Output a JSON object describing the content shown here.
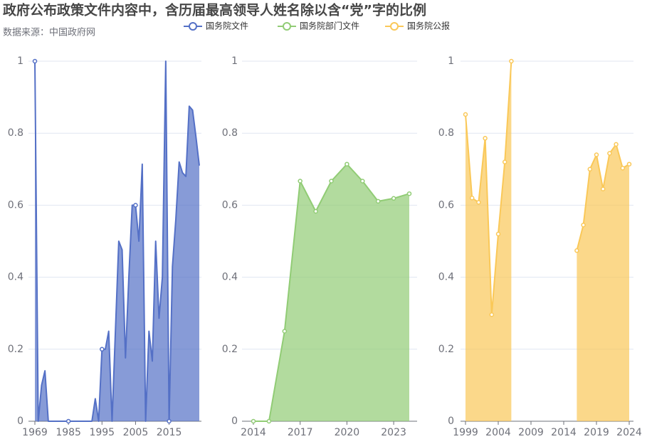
{
  "chart_data": [
    {
      "type": "area",
      "title": "政府公布政策文件内容中，含历届最高领导人姓名除以含“党”字的比例",
      "subtitle": "数据来源：中国政府网",
      "markers": "labeled",
      "categories": [
        1969,
        null,
        null,
        null,
        null,
        null,
        null,
        null,
        null,
        null,
        1985,
        null,
        null,
        null,
        null,
        null,
        null,
        null,
        null,
        null,
        1995,
        null,
        null,
        null,
        null,
        null,
        null,
        null,
        null,
        null,
        2005,
        null,
        null,
        null,
        null,
        null,
        null,
        null,
        null,
        null,
        2015,
        null,
        null,
        null,
        null,
        null,
        null,
        null,
        null,
        null
      ],
      "series": [
        {
          "name": "国务院文件",
          "color": "#5470c6",
          "values": [
            1.0,
            0,
            0.1,
            0.14,
            0,
            0,
            0,
            0,
            0,
            0,
            0,
            0,
            0,
            0,
            0,
            0,
            0,
            0,
            0.0625,
            0,
            0.2,
            0.2,
            0.25,
            0,
            0.25,
            0.5,
            0.476,
            0.176,
            0.4,
            0.6,
            0.6,
            0.5,
            0.714,
            0,
            0.25,
            0.167,
            0.5,
            0.286,
            0.4,
            1.0,
            0,
            0.43,
            0.56,
            0.72,
            0.69,
            0.68,
            0.875,
            0.864,
            0.79,
            0.71
          ]
        }
      ],
      "ylim": [
        0,
        1
      ],
      "yticks": [
        0,
        0.2,
        0.4,
        0.6,
        0.8,
        1
      ],
      "grid": true
    },
    {
      "type": "area",
      "markers": "all",
      "categories": [
        2014,
        null,
        null,
        2017,
        null,
        null,
        2020,
        null,
        null,
        2023,
        null
      ],
      "series": [
        {
          "name": "国务院部门文件",
          "color": "#91cc75",
          "values": [
            0,
            0,
            0.25,
            0.667,
            0.583,
            0.667,
            0.714,
            0.667,
            0.611,
            0.619,
            0.632
          ]
        }
      ],
      "ylim": [
        0,
        1
      ],
      "yticks": [
        0,
        0.2,
        0.4,
        0.6,
        0.8,
        1
      ],
      "grid": true
    },
    {
      "type": "area",
      "markers": "all",
      "categories": [
        1999,
        null,
        null,
        null,
        null,
        2004,
        null,
        null,
        null,
        null,
        2009,
        null,
        null,
        null,
        null,
        2014,
        null,
        null,
        null,
        null,
        2019,
        null,
        null,
        null,
        null,
        2024
      ],
      "series": [
        {
          "name": "国务院公报",
          "color": "#fac858",
          "values": [
            0.852,
            0.62,
            0.608,
            0.786,
            0.296,
            0.52,
            0.72,
            1.0,
            null,
            null,
            null,
            null,
            null,
            null,
            null,
            null,
            null,
            0.474,
            0.545,
            0.7,
            0.74,
            0.645,
            0.744,
            0.769,
            0.703,
            0.714
          ]
        }
      ],
      "ylim": [
        0,
        1
      ],
      "yticks": [
        0,
        0.2,
        0.4,
        0.6,
        0.8,
        1
      ],
      "grid": true
    }
  ]
}
